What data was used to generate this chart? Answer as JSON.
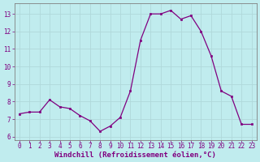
{
  "x": [
    0,
    1,
    2,
    3,
    4,
    5,
    6,
    7,
    8,
    9,
    10,
    11,
    12,
    13,
    14,
    15,
    16,
    17,
    18,
    19,
    20,
    21,
    22,
    23
  ],
  "y": [
    7.3,
    7.4,
    7.4,
    8.1,
    7.7,
    7.6,
    7.2,
    6.9,
    6.3,
    6.6,
    7.1,
    8.6,
    11.5,
    13.0,
    13.0,
    13.2,
    12.7,
    12.9,
    12.0,
    10.6,
    8.6,
    8.3,
    6.7,
    6.7
  ],
  "line_color": "#800080",
  "marker_color": "#800080",
  "bg_color": "#c0ecee",
  "grid_color": "#b0d8da",
  "xlabel": "Windchill (Refroidissement éolien,°C)",
  "ylim": [
    5.8,
    13.6
  ],
  "xlim": [
    -0.5,
    23.5
  ],
  "yticks": [
    6,
    7,
    8,
    9,
    10,
    11,
    12,
    13
  ],
  "xticks": [
    0,
    1,
    2,
    3,
    4,
    5,
    6,
    7,
    8,
    9,
    10,
    11,
    12,
    13,
    14,
    15,
    16,
    17,
    18,
    19,
    20,
    21,
    22,
    23
  ],
  "tick_color": "#800080",
  "label_color": "#800080",
  "tick_fontsize": 5.5,
  "xlabel_fontsize": 6.5,
  "spine_color": "#808080"
}
